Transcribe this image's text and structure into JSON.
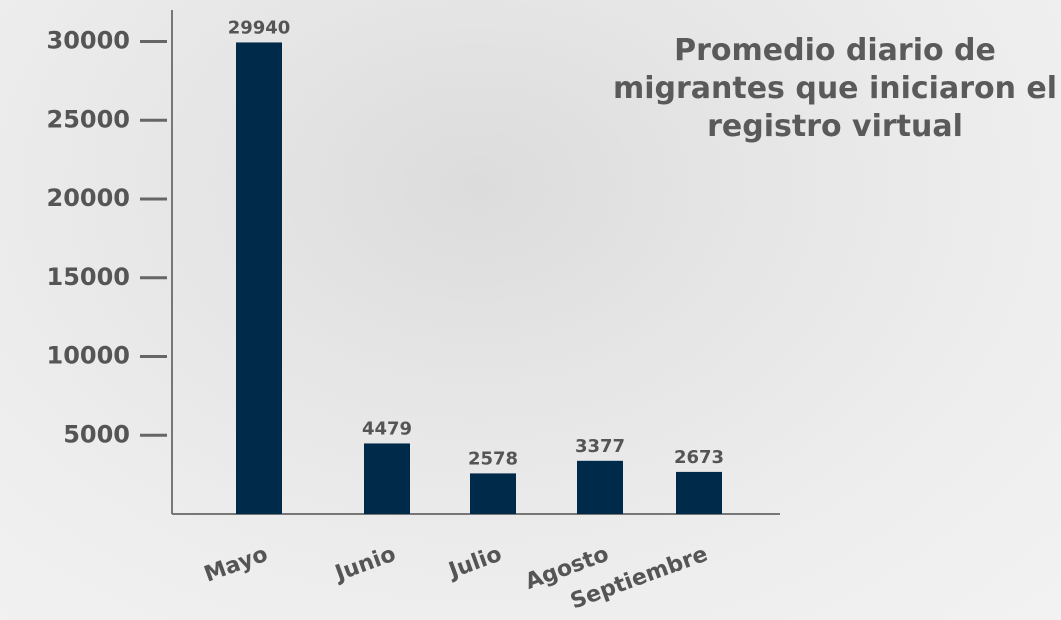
{
  "chart_data": {
    "type": "bar",
    "title": "Promedio diario de migrantes que iniciaron el registro virtual",
    "categories": [
      "Mayo",
      "Junio",
      "Julio",
      "Agosto",
      "Septiembre"
    ],
    "values": [
      29940,
      4479,
      2578,
      3377,
      2673
    ],
    "color": "#002a4a",
    "ylim": [
      0,
      32000
    ],
    "yticks": [
      5000,
      10000,
      15000,
      20000,
      25000,
      30000
    ]
  }
}
